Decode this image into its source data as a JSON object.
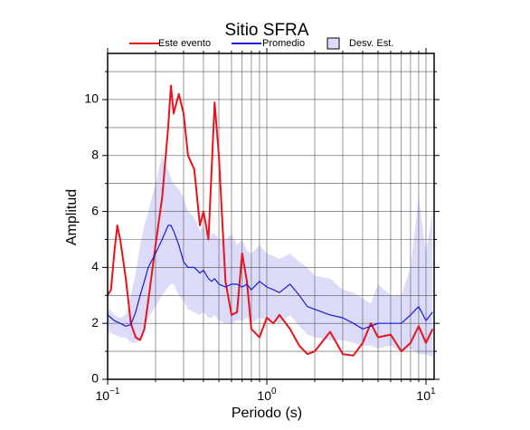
{
  "chart_data": {
    "type": "line",
    "title": "Sitio SFRA",
    "x_label": "Periodo (s)",
    "y_label": "Amplitud",
    "x_scale": "log",
    "grid": true,
    "legend": "top",
    "xlim": [
      0.1,
      11.25
    ],
    "ylim": [
      0,
      11.65
    ],
    "xticks": [
      {
        "value": 0.1,
        "label": "10",
        "exponent": "−1"
      },
      {
        "value": 1,
        "label": "10",
        "exponent": "0"
      },
      {
        "value": 10,
        "label": "10",
        "exponent": "1"
      }
    ],
    "x_minor_ticks": [
      0.2,
      0.3,
      0.4,
      0.5,
      0.6,
      0.7,
      0.8,
      0.9,
      2,
      3,
      4,
      5,
      6,
      7,
      8,
      9
    ],
    "yticks": [
      0,
      2,
      4,
      6,
      8,
      10
    ],
    "y_minor_ticks": [
      1,
      3,
      5,
      7,
      9,
      11
    ],
    "x": [
      0.1,
      0.105,
      0.11,
      0.115,
      0.12,
      0.13,
      0.14,
      0.15,
      0.16,
      0.17,
      0.18,
      0.2,
      0.22,
      0.24,
      0.25,
      0.26,
      0.28,
      0.3,
      0.32,
      0.35,
      0.38,
      0.4,
      0.43,
      0.45,
      0.47,
      0.5,
      0.55,
      0.6,
      0.65,
      0.7,
      0.75,
      0.8,
      0.9,
      1.0,
      1.1,
      1.2,
      1.4,
      1.6,
      1.8,
      2,
      2.5,
      3,
      3.5,
      4,
      4.5,
      5,
      6,
      7,
      8,
      9,
      10,
      11
    ],
    "series": [
      {
        "name": "Este evento",
        "color": "#e8141c",
        "width": 2,
        "values": [
          3.0,
          3.2,
          4.5,
          5.5,
          5.0,
          3.6,
          2.0,
          1.5,
          1.4,
          1.8,
          2.8,
          4.8,
          6.5,
          9.0,
          10.5,
          9.5,
          10.2,
          9.5,
          8.0,
          7.5,
          5.5,
          6.0,
          5.0,
          7.5,
          9.9,
          8.0,
          3.5,
          2.3,
          2.4,
          4.5,
          3.5,
          1.8,
          1.5,
          2.2,
          2.0,
          2.3,
          1.8,
          1.2,
          0.9,
          1.0,
          1.7,
          0.9,
          0.85,
          1.3,
          2.0,
          1.5,
          1.6,
          1.0,
          1.3,
          1.9,
          1.3,
          1.8
        ]
      },
      {
        "name": "Promedio",
        "color": "#1a1ad6",
        "width": 1.2,
        "values": [
          2.3,
          2.2,
          2.1,
          2.05,
          2.0,
          1.9,
          1.95,
          2.4,
          3.0,
          3.5,
          4.0,
          4.5,
          5.0,
          5.5,
          5.5,
          5.3,
          4.8,
          4.2,
          4.0,
          4.0,
          3.8,
          3.9,
          3.6,
          3.5,
          3.6,
          3.4,
          3.3,
          3.4,
          3.4,
          3.3,
          3.4,
          3.2,
          3.5,
          3.3,
          3.2,
          3.1,
          3.4,
          3.0,
          2.6,
          2.5,
          2.3,
          2.2,
          2.0,
          1.8,
          1.9,
          2.0,
          2.0,
          2.0,
          2.3,
          2.6,
          2.1,
          2.4
        ]
      },
      {
        "name": "Desv. Est.",
        "color": "#dcdcfa",
        "kind": "band",
        "upper": [
          2.6,
          2.45,
          2.3,
          2.25,
          2.2,
          2.3,
          3.0,
          3.8,
          4.8,
          5.5,
          6.0,
          7.0,
          8.0,
          7.5,
          7.2,
          7.0,
          6.8,
          6.5,
          6.0,
          5.8,
          5.3,
          5.5,
          5.0,
          5.2,
          5.2,
          5.0,
          5.0,
          5.2,
          4.8,
          5.0,
          4.6,
          4.5,
          4.8,
          4.5,
          4.4,
          4.3,
          4.5,
          4.2,
          4.0,
          3.7,
          3.6,
          3.2,
          3.1,
          2.9,
          2.7,
          3.4,
          3.0,
          3.0,
          4.0,
          6.5,
          4.5,
          6.0
        ],
        "lower": [
          1.7,
          1.65,
          1.6,
          1.55,
          1.5,
          1.5,
          1.3,
          1.3,
          1.4,
          1.8,
          2.2,
          2.6,
          3.0,
          3.3,
          3.4,
          3.4,
          3.0,
          2.8,
          2.5,
          2.4,
          2.3,
          2.4,
          2.2,
          2.2,
          2.3,
          2.1,
          2.0,
          2.0,
          2.1,
          2.1,
          2.2,
          2.0,
          2.2,
          2.1,
          2.1,
          2.0,
          2.3,
          1.9,
          1.6,
          1.5,
          1.4,
          1.4,
          1.3,
          1.2,
          1.2,
          1.1,
          1.2,
          1.0,
          1.1,
          0.9,
          0.9,
          0.8
        ]
      }
    ]
  }
}
